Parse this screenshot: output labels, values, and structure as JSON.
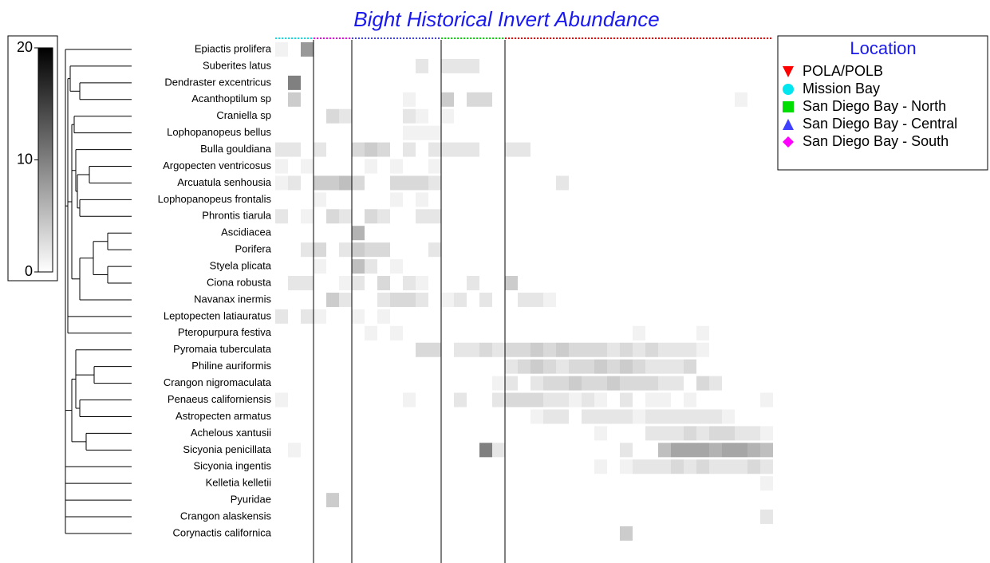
{
  "chart_data": {
    "type": "heatmap",
    "title": "Bight Historical Invert Abundance",
    "legend_title": "Location",
    "zlim": [
      0,
      20
    ],
    "zticks": [
      0,
      10,
      20
    ],
    "locations": [
      {
        "name": "POLA/POLB",
        "color": "#ff0000",
        "marker": "triangle-down",
        "columns": 21
      },
      {
        "name": "Mission Bay",
        "color": "#00e5ee",
        "marker": "circle",
        "columns": 3
      },
      {
        "name": "San Diego Bay - North",
        "color": "#00dd00",
        "marker": "square",
        "columns": 5
      },
      {
        "name": "San Diego Bay - Central",
        "color": "#4040ff",
        "marker": "triangle-up",
        "columns": 7
      },
      {
        "name": "San Diego Bay - South",
        "color": "#ff00ff",
        "marker": "diamond",
        "columns": 3
      }
    ],
    "band_order": [
      1,
      4,
      3,
      2,
      0
    ],
    "rows": [
      {
        "name": "Epiactis prolifera",
        "values": [
          1,
          0,
          8,
          0,
          0,
          0,
          0,
          0,
          0,
          0,
          0,
          0,
          0,
          0,
          0,
          0,
          0,
          0,
          0,
          0,
          0,
          0,
          0,
          0,
          0,
          0,
          0,
          0,
          0,
          0,
          0,
          0,
          0,
          0,
          0,
          0,
          0,
          0,
          0
        ]
      },
      {
        "name": "Suberites latus",
        "values": [
          0,
          0,
          0,
          0,
          0,
          0,
          0,
          0,
          0,
          0,
          0,
          2,
          0,
          2,
          2,
          2,
          0,
          0,
          0,
          0,
          0,
          0,
          0,
          0,
          0,
          0,
          0,
          0,
          0,
          0,
          0,
          0,
          0,
          0,
          0,
          0,
          0,
          0,
          0
        ]
      },
      {
        "name": "Dendraster excentricus",
        "values": [
          0,
          10,
          0,
          0,
          0,
          0,
          0,
          0,
          0,
          0,
          0,
          0,
          0,
          0,
          0,
          0,
          0,
          0,
          0,
          0,
          0,
          0,
          0,
          0,
          0,
          0,
          0,
          0,
          0,
          0,
          0,
          0,
          0,
          0,
          0,
          0,
          0,
          0,
          0
        ]
      },
      {
        "name": "Acanthoptilum sp",
        "values": [
          0,
          4,
          0,
          0,
          0,
          0,
          0,
          0,
          0,
          0,
          1,
          0,
          0,
          4,
          0,
          3,
          3,
          0,
          0,
          0,
          0,
          0,
          0,
          0,
          0,
          0,
          0,
          0,
          0,
          0,
          0,
          0,
          0,
          0,
          0,
          0,
          1,
          0,
          0
        ]
      },
      {
        "name": "Craniella sp",
        "values": [
          0,
          0,
          0,
          0,
          3,
          2,
          0,
          0,
          0,
          0,
          2,
          1,
          0,
          1,
          0,
          0,
          0,
          0,
          0,
          0,
          0,
          0,
          0,
          0,
          0,
          0,
          0,
          0,
          0,
          0,
          0,
          0,
          0,
          0,
          0,
          0,
          0,
          0,
          0
        ]
      },
      {
        "name": "Lophopanopeus bellus",
        "values": [
          0,
          0,
          0,
          0,
          0,
          0,
          0,
          0,
          0,
          0,
          1,
          1,
          1,
          0,
          0,
          0,
          0,
          0,
          0,
          0,
          0,
          0,
          0,
          0,
          0,
          0,
          0,
          0,
          0,
          0,
          0,
          0,
          0,
          0,
          0,
          0,
          0,
          0,
          0
        ]
      },
      {
        "name": "Bulla gouldiana",
        "values": [
          2,
          2,
          0,
          2,
          0,
          0,
          3,
          4,
          3,
          0,
          2,
          0,
          2,
          2,
          2,
          2,
          0,
          0,
          2,
          2,
          0,
          0,
          0,
          0,
          0,
          0,
          0,
          0,
          0,
          0,
          0,
          0,
          0,
          0,
          0,
          0,
          0,
          0,
          0
        ]
      },
      {
        "name": "Argopecten ventricosus",
        "values": [
          1,
          0,
          1,
          0,
          0,
          0,
          0,
          1,
          0,
          1,
          0,
          0,
          1,
          0,
          0,
          0,
          0,
          0,
          0,
          0,
          0,
          0,
          0,
          0,
          0,
          0,
          0,
          0,
          0,
          0,
          0,
          0,
          0,
          0,
          0,
          0,
          0,
          0,
          0
        ]
      },
      {
        "name": "Arcuatula senhousia",
        "values": [
          1,
          2,
          0,
          4,
          4,
          5,
          3,
          0,
          0,
          3,
          3,
          3,
          2,
          0,
          0,
          0,
          0,
          0,
          0,
          0,
          0,
          0,
          2,
          0,
          0,
          0,
          0,
          0,
          0,
          0,
          0,
          0,
          0,
          0,
          0,
          0,
          0,
          0,
          0
        ]
      },
      {
        "name": "Lophopanopeus frontalis",
        "values": [
          0,
          0,
          0,
          1,
          0,
          0,
          0,
          0,
          0,
          1,
          0,
          1,
          0,
          0,
          0,
          0,
          0,
          0,
          0,
          0,
          0,
          0,
          0,
          0,
          0,
          0,
          0,
          0,
          0,
          0,
          0,
          0,
          0,
          0,
          0,
          0,
          0,
          0,
          0
        ]
      },
      {
        "name": "Phrontis tiarula",
        "values": [
          2,
          0,
          1,
          0,
          3,
          2,
          0,
          3,
          2,
          0,
          0,
          2,
          2,
          0,
          0,
          0,
          0,
          0,
          0,
          0,
          0,
          0,
          0,
          0,
          0,
          0,
          0,
          0,
          0,
          0,
          0,
          0,
          0,
          0,
          0,
          0,
          0,
          0,
          0
        ]
      },
      {
        "name": "Ascidiacea",
        "values": [
          0,
          0,
          0,
          0,
          0,
          0,
          6,
          0,
          0,
          0,
          0,
          0,
          0,
          0,
          0,
          0,
          0,
          0,
          0,
          0,
          0,
          0,
          0,
          0,
          0,
          0,
          0,
          0,
          0,
          0,
          0,
          0,
          0,
          0,
          0,
          0,
          0,
          0,
          0
        ]
      },
      {
        "name": "Porifera",
        "values": [
          0,
          0,
          2,
          3,
          0,
          2,
          4,
          3,
          3,
          0,
          0,
          0,
          2,
          0,
          0,
          0,
          0,
          0,
          0,
          0,
          0,
          0,
          0,
          0,
          0,
          0,
          0,
          0,
          0,
          0,
          0,
          0,
          0,
          0,
          0,
          0,
          0,
          0,
          0
        ]
      },
      {
        "name": "Styela plicata",
        "values": [
          0,
          0,
          0,
          1,
          0,
          0,
          5,
          2,
          0,
          1,
          0,
          0,
          0,
          0,
          0,
          0,
          0,
          0,
          0,
          0,
          0,
          0,
          0,
          0,
          0,
          0,
          0,
          0,
          0,
          0,
          0,
          0,
          0,
          0,
          0,
          0,
          0,
          0,
          0
        ]
      },
      {
        "name": "Ciona robusta",
        "values": [
          0,
          2,
          2,
          0,
          0,
          1,
          2,
          0,
          3,
          0,
          2,
          1,
          0,
          0,
          0,
          2,
          0,
          0,
          4,
          0,
          0,
          0,
          0,
          0,
          0,
          0,
          0,
          0,
          0,
          0,
          0,
          0,
          0,
          0,
          0,
          0,
          0,
          0,
          0
        ]
      },
      {
        "name": "Navanax inermis",
        "values": [
          0,
          0,
          0,
          0,
          4,
          2,
          0,
          0,
          2,
          3,
          3,
          2,
          0,
          1,
          2,
          0,
          2,
          0,
          0,
          2,
          2,
          1,
          0,
          0,
          0,
          0,
          0,
          0,
          0,
          0,
          0,
          0,
          0,
          0,
          0,
          0,
          0,
          0,
          0
        ]
      },
      {
        "name": "Leptopecten latiauratus",
        "values": [
          2,
          0,
          2,
          1,
          0,
          0,
          1,
          0,
          1,
          0,
          0,
          0,
          0,
          0,
          0,
          0,
          0,
          0,
          0,
          0,
          0,
          0,
          0,
          0,
          0,
          0,
          0,
          0,
          0,
          0,
          0,
          0,
          0,
          0,
          0,
          0,
          0,
          0,
          0
        ]
      },
      {
        "name": "Pteropurpura festiva",
        "values": [
          0,
          0,
          0,
          0,
          0,
          0,
          0,
          1,
          0,
          1,
          0,
          0,
          0,
          0,
          0,
          0,
          0,
          0,
          0,
          0,
          0,
          0,
          0,
          0,
          0,
          0,
          0,
          0,
          1,
          0,
          0,
          0,
          0,
          1,
          0,
          0,
          0,
          0,
          0
        ]
      },
      {
        "name": "Pyromaia tuberculata",
        "values": [
          0,
          0,
          0,
          0,
          0,
          0,
          0,
          0,
          0,
          0,
          0,
          3,
          3,
          0,
          2,
          2,
          3,
          2,
          3,
          3,
          4,
          3,
          4,
          3,
          3,
          3,
          2,
          3,
          2,
          3,
          2,
          2,
          2,
          1,
          0,
          0,
          0,
          0,
          0
        ]
      },
      {
        "name": "Philine auriformis",
        "values": [
          0,
          0,
          0,
          0,
          0,
          0,
          0,
          0,
          0,
          0,
          0,
          0,
          0,
          0,
          0,
          0,
          0,
          0,
          2,
          3,
          4,
          3,
          2,
          3,
          3,
          4,
          3,
          4,
          3,
          2,
          2,
          2,
          3,
          0,
          0,
          0,
          0,
          0,
          0
        ]
      },
      {
        "name": "Crangon nigromaculata",
        "values": [
          0,
          0,
          0,
          0,
          0,
          0,
          0,
          0,
          0,
          0,
          0,
          0,
          0,
          0,
          0,
          0,
          0,
          1,
          2,
          0,
          2,
          3,
          3,
          4,
          3,
          3,
          4,
          3,
          3,
          3,
          2,
          2,
          0,
          3,
          2,
          0,
          0,
          0,
          0
        ]
      },
      {
        "name": "Penaeus californiensis",
        "values": [
          1,
          0,
          0,
          0,
          0,
          0,
          0,
          0,
          0,
          0,
          1,
          0,
          0,
          0,
          2,
          0,
          0,
          2,
          3,
          3,
          3,
          2,
          2,
          1,
          2,
          1,
          0,
          2,
          0,
          1,
          1,
          0,
          1,
          0,
          0,
          0,
          0,
          0,
          1
        ]
      },
      {
        "name": "Astropecten armatus",
        "values": [
          0,
          0,
          0,
          0,
          0,
          0,
          0,
          0,
          0,
          0,
          0,
          0,
          0,
          0,
          0,
          0,
          0,
          0,
          0,
          0,
          1,
          2,
          2,
          0,
          2,
          2,
          2,
          2,
          1,
          2,
          2,
          2,
          2,
          2,
          2,
          1,
          0,
          0,
          0
        ]
      },
      {
        "name": "Achelous xantusii",
        "values": [
          0,
          0,
          0,
          0,
          0,
          0,
          0,
          0,
          0,
          0,
          0,
          0,
          0,
          0,
          0,
          0,
          0,
          0,
          0,
          0,
          0,
          0,
          0,
          0,
          0,
          1,
          0,
          0,
          0,
          2,
          2,
          2,
          3,
          2,
          3,
          3,
          2,
          2,
          1
        ]
      },
      {
        "name": "Sicyonia penicillata",
        "values": [
          0,
          1,
          0,
          0,
          0,
          0,
          0,
          0,
          0,
          0,
          0,
          0,
          0,
          0,
          0,
          0,
          10,
          2,
          0,
          0,
          0,
          0,
          0,
          0,
          0,
          0,
          0,
          2,
          0,
          0,
          5,
          7,
          7,
          7,
          6,
          7,
          7,
          6,
          5
        ]
      },
      {
        "name": "Sicyonia ingentis",
        "values": [
          0,
          0,
          0,
          0,
          0,
          0,
          0,
          0,
          0,
          0,
          0,
          0,
          0,
          0,
          0,
          0,
          0,
          0,
          0,
          0,
          0,
          0,
          0,
          0,
          0,
          1,
          0,
          1,
          2,
          2,
          2,
          3,
          2,
          3,
          2,
          2,
          2,
          3,
          2
        ]
      },
      {
        "name": "Kelletia kelletii",
        "values": [
          0,
          0,
          0,
          0,
          0,
          0,
          0,
          0,
          0,
          0,
          0,
          0,
          0,
          0,
          0,
          0,
          0,
          0,
          0,
          0,
          0,
          0,
          0,
          0,
          0,
          0,
          0,
          0,
          0,
          0,
          0,
          0,
          0,
          0,
          0,
          0,
          0,
          0,
          1
        ]
      },
      {
        "name": "Pyuridae",
        "values": [
          0,
          0,
          0,
          0,
          4,
          0,
          0,
          0,
          0,
          0,
          0,
          0,
          0,
          0,
          0,
          0,
          0,
          0,
          0,
          0,
          0,
          0,
          0,
          0,
          0,
          0,
          0,
          0,
          0,
          0,
          0,
          0,
          0,
          0,
          0,
          0,
          0,
          0,
          0
        ]
      },
      {
        "name": "Crangon alaskensis",
        "values": [
          0,
          0,
          0,
          0,
          0,
          0,
          0,
          0,
          0,
          0,
          0,
          0,
          0,
          0,
          0,
          0,
          0,
          0,
          0,
          0,
          0,
          0,
          0,
          0,
          0,
          0,
          0,
          0,
          0,
          0,
          0,
          0,
          0,
          0,
          0,
          0,
          0,
          0,
          2
        ]
      },
      {
        "name": "Corynactis californica",
        "values": [
          0,
          0,
          0,
          0,
          0,
          0,
          0,
          0,
          0,
          0,
          0,
          0,
          0,
          0,
          0,
          0,
          0,
          0,
          0,
          0,
          0,
          0,
          0,
          0,
          0,
          0,
          0,
          4,
          0,
          0,
          0,
          0,
          0,
          0,
          0,
          0,
          0,
          0,
          0
        ]
      }
    ]
  }
}
